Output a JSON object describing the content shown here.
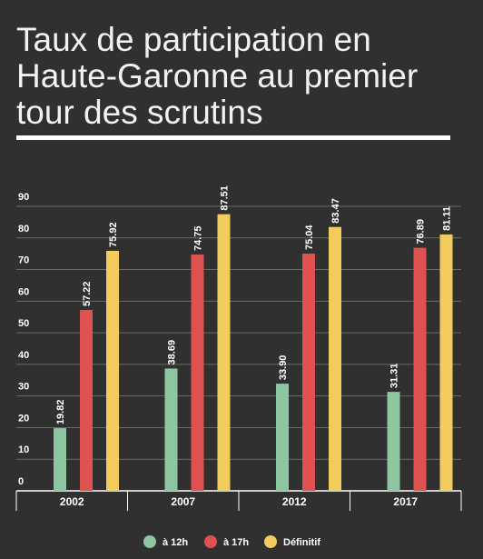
{
  "chart_data": {
    "type": "bar",
    "title": "Taux de participation en Haute-Garonne au premier tour des scrutins",
    "categories": [
      "2002",
      "2007",
      "2012",
      "2017"
    ],
    "series": [
      {
        "name": "à 12h",
        "color": "#8cc7a1",
        "values": [
          19.82,
          38.69,
          33.9,
          31.31
        ],
        "labels": [
          "19.82",
          "38.69",
          "33.90",
          "31.31"
        ]
      },
      {
        "name": "à 17h",
        "color": "#e05252",
        "values": [
          57.22,
          74.75,
          75.04,
          76.89
        ],
        "labels": [
          "57.22",
          "74.75",
          "75.04",
          "76.89"
        ]
      },
      {
        "name": "Définitif",
        "color": "#f2cc5c",
        "values": [
          75.92,
          87.51,
          83.47,
          81.11
        ],
        "labels": [
          "75.92",
          "87.51",
          "83.47",
          "81.11"
        ]
      }
    ],
    "yticks": [
      "0",
      "10",
      "20",
      "30",
      "40",
      "50",
      "60",
      "70",
      "80",
      "90"
    ],
    "ylim": [
      0,
      90
    ],
    "grid": true,
    "legend": "bottom"
  }
}
